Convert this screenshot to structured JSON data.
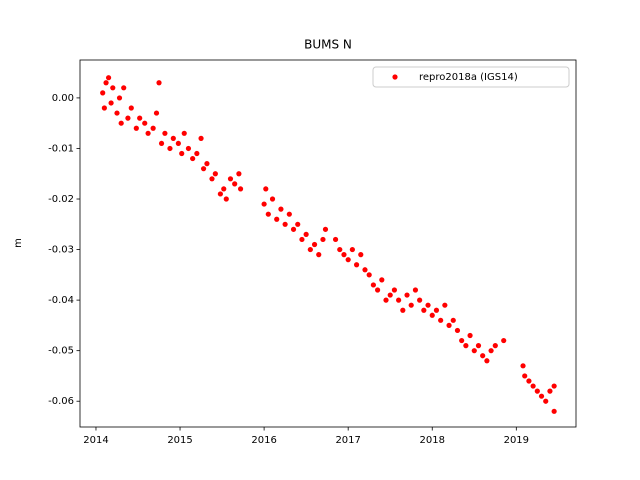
{
  "chart_data": {
    "type": "scatter",
    "title": "BUMS N",
    "y_label": "m",
    "xlim": [
      2013.81,
      2019.71
    ],
    "ylim": [
      -0.0651,
      0.0075
    ],
    "xticks": [
      2014,
      2015,
      2016,
      2017,
      2018,
      2019
    ],
    "yticks": [
      {
        "value": 0,
        "label": "0.00"
      },
      -0.01,
      -0.02,
      -0.03,
      -0.04,
      -0.05,
      -0.06
    ],
    "legend_position": "upper right",
    "grid": false,
    "series": [
      {
        "name": "repro2018a (IGS14)",
        "color": "#ff0000",
        "x": [
          2014.08,
          2014.1,
          2014.12,
          2014.15,
          2014.18,
          2014.2,
          2014.25,
          2014.28,
          2014.3,
          2014.33,
          2014.38,
          2014.42,
          2014.48,
          2014.52,
          2014.58,
          2014.62,
          2014.68,
          2014.72,
          2014.75,
          2014.78,
          2014.82,
          2014.88,
          2014.92,
          2014.98,
          2015.02,
          2015.05,
          2015.1,
          2015.15,
          2015.2,
          2015.25,
          2015.28,
          2015.32,
          2015.38,
          2015.42,
          2015.48,
          2015.52,
          2015.55,
          2015.6,
          2015.65,
          2015.7,
          2015.72,
          2016.02,
          2016.0,
          2016.05,
          2016.1,
          2016.15,
          2016.2,
          2016.25,
          2016.3,
          2016.35,
          2016.4,
          2016.45,
          2016.5,
          2016.55,
          2016.6,
          2016.65,
          2016.7,
          2016.73,
          2016.85,
          2016.9,
          2016.95,
          2017.0,
          2017.05,
          2017.1,
          2017.15,
          2017.2,
          2017.25,
          2017.3,
          2017.35,
          2017.4,
          2017.45,
          2017.5,
          2017.55,
          2017.6,
          2017.65,
          2017.7,
          2017.75,
          2017.8,
          2017.85,
          2017.9,
          2017.95,
          2018.0,
          2018.05,
          2018.1,
          2018.15,
          2018.2,
          2018.25,
          2018.3,
          2018.35,
          2018.4,
          2018.45,
          2018.5,
          2018.55,
          2018.6,
          2018.65,
          2018.7,
          2018.75,
          2018.85,
          2019.08,
          2019.1,
          2019.15,
          2019.2,
          2019.25,
          2019.3,
          2019.35,
          2019.4,
          2019.45,
          2019.45
        ],
        "values": [
          0.001,
          -0.002,
          0.003,
          0.004,
          -0.001,
          0.002,
          -0.003,
          0.0,
          -0.005,
          0.002,
          -0.004,
          -0.002,
          -0.006,
          -0.004,
          -0.005,
          -0.007,
          -0.006,
          -0.003,
          0.003,
          -0.009,
          -0.007,
          -0.01,
          -0.008,
          -0.009,
          -0.011,
          -0.007,
          -0.01,
          -0.012,
          -0.011,
          -0.008,
          -0.014,
          -0.013,
          -0.016,
          -0.015,
          -0.019,
          -0.018,
          -0.02,
          -0.016,
          -0.017,
          -0.015,
          -0.018,
          -0.018,
          -0.021,
          -0.023,
          -0.02,
          -0.024,
          -0.022,
          -0.025,
          -0.023,
          -0.026,
          -0.025,
          -0.028,
          -0.027,
          -0.03,
          -0.029,
          -0.031,
          -0.028,
          -0.026,
          -0.028,
          -0.03,
          -0.031,
          -0.032,
          -0.03,
          -0.033,
          -0.031,
          -0.034,
          -0.035,
          -0.037,
          -0.038,
          -0.036,
          -0.04,
          -0.039,
          -0.038,
          -0.04,
          -0.042,
          -0.039,
          -0.041,
          -0.038,
          -0.04,
          -0.042,
          -0.041,
          -0.043,
          -0.042,
          -0.044,
          -0.041,
          -0.045,
          -0.044,
          -0.046,
          -0.048,
          -0.049,
          -0.047,
          -0.05,
          -0.049,
          -0.051,
          -0.052,
          -0.05,
          -0.049,
          -0.048,
          -0.053,
          -0.055,
          -0.056,
          -0.057,
          -0.058,
          -0.059,
          -0.06,
          -0.058,
          -0.062,
          -0.057
        ]
      }
    ]
  }
}
